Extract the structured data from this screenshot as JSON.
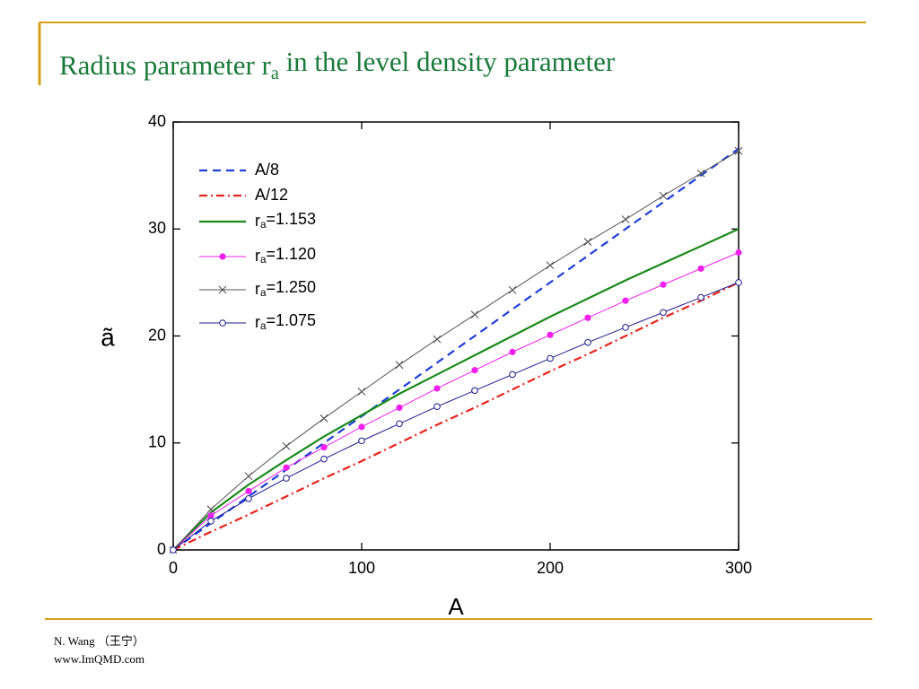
{
  "chart_data": {
    "type": "line",
    "title": "Radius parameter ra in the level density parameter",
    "x_label": "A",
    "y_label": "ã",
    "x": [
      0,
      20,
      40,
      60,
      80,
      100,
      120,
      140,
      160,
      180,
      200,
      220,
      240,
      260,
      280,
      300
    ],
    "series": [
      {
        "name": "A/8",
        "color": "#1f3fd6",
        "dash": "9,6",
        "marker": "none",
        "values": [
          0,
          2.5,
          5,
          7.5,
          10,
          12.5,
          15,
          17.5,
          20,
          22.5,
          25,
          27.5,
          30,
          32.5,
          35,
          37.5
        ]
      },
      {
        "name": "A/12",
        "color": "#e8231c",
        "dash": "9,4,2,4",
        "marker": "none",
        "values": [
          0,
          1.7,
          3.3,
          5,
          6.7,
          8.3,
          10,
          11.7,
          13.3,
          15,
          16.7,
          18.3,
          20,
          21.7,
          23.3,
          25
        ]
      },
      {
        "name": "ra=1.153",
        "color": "#1a8a1a",
        "dash": "none",
        "marker": "none",
        "values": [
          0,
          3.5,
          6.1,
          8.4,
          10.6,
          12.6,
          14.6,
          16.4,
          18.2,
          20.0,
          21.8,
          23.5,
          25.2,
          26.8,
          28.4,
          30
        ]
      },
      {
        "name": "ra=1.120",
        "color": "#f020f0",
        "dash": "none",
        "marker": "filled-circle",
        "values": [
          0,
          3.2,
          5.5,
          7.7,
          9.6,
          11.5,
          13.3,
          15.1,
          16.8,
          18.5,
          20.1,
          21.7,
          23.3,
          24.8,
          26.3,
          27.8
        ]
      },
      {
        "name": "ra=1.250",
        "color": "#555555",
        "dash": "none",
        "marker": "cross",
        "values": [
          0,
          3.8,
          6.9,
          9.7,
          12.3,
          14.8,
          17.3,
          19.7,
          22.0,
          24.3,
          26.6,
          28.8,
          30.9,
          33.1,
          35.2,
          37.3
        ]
      },
      {
        "name": "ra=1.075",
        "color": "#1a1a8a",
        "dash": "none",
        "marker": "open-circle",
        "values": [
          0,
          2.7,
          4.8,
          6.7,
          8.5,
          10.2,
          11.8,
          13.4,
          14.9,
          16.4,
          17.9,
          19.4,
          20.8,
          22.2,
          23.6,
          25
        ]
      }
    ],
    "xlim": [
      0,
      300
    ],
    "xticks": [
      0,
      100,
      200,
      300
    ],
    "ylim": [
      0,
      40
    ],
    "yticks": [
      0,
      10,
      20,
      30,
      40
    ],
    "grid": false,
    "legend": "upper-left"
  },
  "footer": {
    "author": "N. Wang （王宁）",
    "url": "www.ImQMD.com"
  }
}
